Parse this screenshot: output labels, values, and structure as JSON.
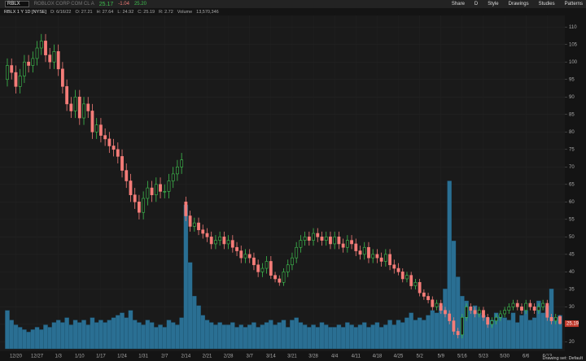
{
  "toolbar": {
    "symbol": "RBLX",
    "company": "ROBLOX CORP COM CL A",
    "last": "25.17",
    "change": "-1.04",
    "bid": "25.20",
    "buttons": [
      "Share",
      "D",
      "Style",
      "Drawings",
      "Studies",
      "Patterns"
    ]
  },
  "info_bar": [
    "RBLX 1 Y 1D [NYSE]",
    "D: 6/16/22",
    "O: 27.21",
    "H: 27.64",
    "L: 24.92",
    "C: 25.19",
    "R: 2.72",
    "Volume",
    "13,570,346"
  ],
  "status": "Drawing set: Default",
  "chart_data": {
    "type": "candlestick",
    "categories": [
      null,
      null,
      "12/20",
      null,
      null,
      null,
      null,
      "12/27",
      null,
      null,
      null,
      null,
      "1/3",
      null,
      null,
      null,
      null,
      "1/10",
      null,
      null,
      null,
      null,
      "1/17",
      null,
      null,
      null,
      null,
      "1/24",
      null,
      null,
      null,
      null,
      "1/31",
      null,
      null,
      null,
      null,
      "2/7",
      null,
      null,
      null,
      null,
      "2/14",
      null,
      null,
      null,
      null,
      "2/21",
      null,
      null,
      null,
      null,
      "2/28",
      null,
      null,
      null,
      null,
      "3/7",
      null,
      null,
      null,
      null,
      "3/14",
      null,
      null,
      null,
      null,
      "3/21",
      null,
      null,
      null,
      null,
      "3/28",
      null,
      null,
      null,
      null,
      "4/4",
      null,
      null,
      null,
      null,
      "4/11",
      null,
      null,
      null,
      null,
      "4/18",
      null,
      null,
      null,
      null,
      "4/25",
      null,
      null,
      null,
      null,
      "5/2",
      null,
      null,
      null,
      null,
      "5/9",
      null,
      null,
      null,
      null,
      "5/16",
      null,
      null,
      null,
      null,
      "5/23",
      null,
      null,
      null,
      null,
      "5/30",
      null,
      null,
      null,
      null,
      "6/6",
      null,
      null,
      null,
      null,
      "6/13",
      null,
      null,
      null
    ],
    "open": [
      95,
      99,
      97,
      93,
      96,
      100,
      99,
      101,
      104,
      106,
      102,
      100,
      103,
      98,
      93,
      88,
      86,
      90,
      84,
      88,
      86,
      80,
      82,
      79,
      78,
      76,
      75,
      73,
      69,
      66,
      62,
      60,
      57,
      61,
      64,
      62,
      65,
      63,
      63,
      66,
      68,
      70,
      60,
      56,
      53,
      54,
      52,
      51,
      50,
      48,
      49,
      50,
      48,
      49,
      47,
      46,
      44,
      45,
      44,
      42,
      40,
      41,
      43,
      39,
      38,
      37,
      40,
      42,
      44,
      47,
      49,
      50,
      49,
      51,
      50,
      49,
      50,
      48,
      50,
      48,
      47,
      49,
      48,
      46,
      45,
      47,
      44,
      45,
      44,
      43,
      45,
      42,
      41,
      40,
      38,
      39,
      36,
      37,
      34,
      33,
      32,
      30,
      31,
      29,
      28,
      26,
      23,
      22,
      27,
      30,
      29,
      28,
      29,
      27,
      25,
      26,
      27,
      28,
      29,
      30,
      31,
      30,
      29,
      31,
      30,
      29,
      30,
      31,
      27,
      26,
      27.21
    ],
    "high": [
      101,
      101,
      99,
      98,
      102,
      102,
      103,
      106,
      108,
      108,
      104,
      105,
      105,
      100,
      95,
      90,
      92,
      92,
      90,
      90,
      88,
      84,
      84,
      81,
      80,
      78,
      77,
      75,
      71,
      68,
      64,
      62,
      63,
      66,
      66,
      67,
      67,
      65,
      68,
      70,
      72,
      74,
      61.5,
      57.5,
      55.5,
      55.5,
      53.5,
      52.5,
      51.5,
      50.5,
      51.5,
      51.5,
      50.5,
      50.5,
      48.5,
      47.5,
      46.5,
      46.5,
      45.5,
      43.5,
      42.5,
      44.5,
      44.5,
      40,
      39,
      41,
      43.5,
      45.5,
      48.5,
      50.5,
      51.5,
      51.5,
      52.5,
      52.5,
      51.5,
      51.5,
      51.5,
      51.5,
      51.5,
      49.5,
      50.5,
      50.5,
      49.5,
      47.5,
      48.5,
      48.5,
      46.5,
      46.5,
      45.5,
      46.5,
      46.5,
      43.5,
      42.5,
      41,
      40,
      40,
      38,
      38,
      35,
      34,
      33,
      32,
      32,
      30,
      29,
      27,
      24,
      28,
      31,
      31,
      30,
      30,
      30,
      28,
      27,
      28,
      29,
      30,
      31,
      32,
      32,
      31,
      32,
      32,
      31,
      31,
      32,
      32,
      28,
      28,
      27.64
    ],
    "low": [
      93,
      95,
      91,
      91,
      94,
      97,
      97,
      99,
      102,
      100,
      98,
      98,
      96,
      91,
      86,
      84,
      84,
      82,
      82,
      84,
      78,
      78,
      77,
      76,
      74,
      73,
      71,
      67,
      64,
      60,
      58,
      55,
      55,
      59,
      60,
      60,
      61,
      61,
      61,
      64,
      66,
      68,
      54.5,
      51.5,
      51.5,
      50.5,
      49.5,
      48.5,
      46.5,
      46.5,
      47.5,
      46.5,
      46.5,
      45.5,
      44.5,
      42.5,
      42.5,
      42.5,
      40.5,
      38.5,
      38.5,
      39.5,
      38,
      37,
      36,
      36,
      38.5,
      40.5,
      42.5,
      45.5,
      47.5,
      47.5,
      47.5,
      48.5,
      47.5,
      47.5,
      46.5,
      46.5,
      46.5,
      45.5,
      45.5,
      46.5,
      44.5,
      43.5,
      43.5,
      42.5,
      42.5,
      42.5,
      41.5,
      41.5,
      40.5,
      39.5,
      39,
      37,
      37,
      35,
      35,
      33,
      32,
      31,
      29,
      29,
      28,
      27,
      25,
      22,
      21,
      21,
      26,
      28,
      27,
      27,
      26,
      24,
      24,
      25,
      26,
      27,
      28,
      29,
      29,
      28,
      28,
      29,
      28,
      28,
      29,
      26,
      25,
      25,
      24.92
    ],
    "close": [
      99,
      97,
      93,
      96,
      100,
      99,
      101,
      104,
      106,
      102,
      100,
      103,
      98,
      93,
      88,
      86,
      90,
      84,
      88,
      86,
      80,
      82,
      79,
      78,
      76,
      75,
      73,
      69,
      66,
      62,
      60,
      57,
      61,
      64,
      62,
      65,
      63,
      63,
      66,
      68,
      70,
      72,
      56,
      53,
      54,
      52,
      51,
      50,
      48,
      49,
      50,
      48,
      49,
      47,
      46,
      44,
      45,
      44,
      42,
      40,
      41,
      43,
      39,
      38,
      37,
      40,
      42,
      44,
      47,
      49,
      50,
      49,
      51,
      50,
      49,
      50,
      48,
      50,
      48,
      47,
      49,
      48,
      46,
      45,
      47,
      44,
      45,
      44,
      43,
      45,
      42,
      41,
      40,
      38,
      39,
      36,
      37,
      34,
      33,
      32,
      30,
      31,
      29,
      28,
      26,
      23,
      22,
      27,
      30,
      29,
      28,
      29,
      27,
      25,
      26,
      27,
      28,
      29,
      30,
      31,
      30,
      29,
      31,
      30,
      29,
      30,
      31,
      27,
      26,
      27,
      25.19
    ],
    "volume": [
      16,
      12,
      10,
      9,
      8,
      7,
      8,
      9,
      8,
      10,
      9,
      11,
      12,
      11,
      13,
      10,
      12,
      11,
      12,
      10,
      13,
      11,
      12,
      11,
      12,
      13,
      14,
      15,
      13,
      16,
      12,
      11,
      10,
      12,
      11,
      9,
      10,
      9,
      12,
      11,
      10,
      13,
      60,
      36,
      22,
      18,
      14,
      12,
      11,
      10,
      11,
      10,
      10,
      11,
      9,
      10,
      9,
      10,
      11,
      9,
      10,
      11,
      12,
      10,
      11,
      12,
      9,
      12,
      13,
      11,
      10,
      9,
      10,
      9,
      11,
      10,
      9,
      9,
      10,
      9,
      11,
      10,
      9,
      10,
      11,
      9,
      10,
      11,
      9,
      10,
      12,
      10,
      12,
      11,
      13,
      15,
      12,
      13,
      12,
      14,
      16,
      15,
      18,
      25,
      70,
      45,
      30,
      22,
      20,
      16,
      18,
      15,
      14,
      13,
      12,
      15,
      14,
      13,
      12,
      15,
      11,
      14,
      16,
      12,
      13,
      20,
      15,
      18,
      25,
      13,
      14
    ],
    "ylim": [
      18,
      114
    ],
    "yticks": [
      20,
      25,
      30,
      35,
      40,
      45,
      50,
      55,
      60,
      65,
      70,
      75,
      80,
      85,
      90,
      95,
      100,
      105,
      110
    ],
    "y2lim": [
      0,
      140
    ],
    "grid": true,
    "up_color": "#3fbf4f",
    "down_color": "#f47c78",
    "volume_color": "#2a6f93",
    "last_price_label": "25.19"
  }
}
